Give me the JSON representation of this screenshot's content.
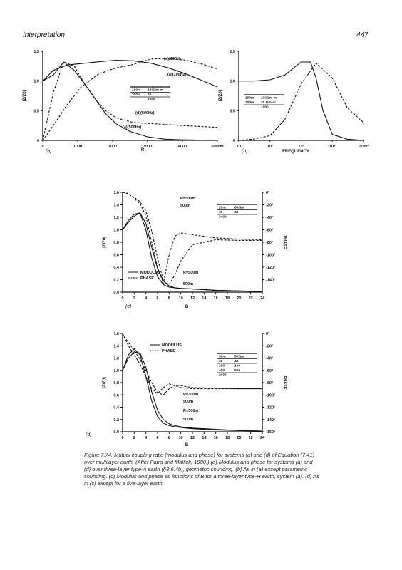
{
  "header": {
    "left": "Interpretation",
    "right": "447"
  },
  "figure_caption": "Figure 7.74. Mutual coupling ratio (modulus and phase) for systems (a) and (d) of Equation (7.41) over multilayer earth. (After Patra and Mallick, 1980.) (a) Modulus and phase for systems (a) and (d) over three-layer type-A earth (§8.6.4b), geometric sounding. (b) As in (a) except parametric sounding. (c) Modulus and phase as functions of B for a three-layer type-H earth, system (a). (d) As in (c) except for a five-layer earth.",
  "chart_data": [
    {
      "id": "a",
      "panel_label": "(a)",
      "type": "line",
      "xlabel": "R",
      "ylabel": "|Z/Z0|",
      "xlim": [
        0,
        5000
      ],
      "ylim": [
        0,
        1.5
      ],
      "x_ticks": [
        "0",
        "1000",
        "2000",
        "3000",
        "4000",
        "5000m"
      ],
      "y_ticks": [
        "0",
        "0.5",
        "1.0",
        "1.5"
      ],
      "series": [
        {
          "name": "(a)(100Hz)",
          "style": "solid",
          "x": [
            0,
            300,
            700,
            1200,
            1700,
            2100,
            2600,
            3100,
            3600,
            4100,
            4600,
            5000
          ],
          "y": [
            1.0,
            1.18,
            1.27,
            1.3,
            1.33,
            1.35,
            1.34,
            1.3,
            1.22,
            1.12,
            1.0,
            0.9
          ]
        },
        {
          "name": "(d)(100Hz)",
          "style": "dashed",
          "x": [
            0,
            300,
            700,
            1100,
            1600,
            2100,
            2600,
            3100,
            3600,
            4100,
            4600,
            5000
          ],
          "y": [
            0.0,
            0.25,
            0.6,
            0.9,
            1.12,
            1.22,
            1.28,
            1.37,
            1.38,
            1.35,
            1.28,
            1.2
          ]
        },
        {
          "name": "(a)(500Hz)",
          "style": "solid",
          "x": [
            0,
            300,
            600,
            900,
            1200,
            1500,
            1800,
            2100,
            2500,
            3000,
            3500,
            4000,
            5000
          ],
          "y": [
            1.0,
            1.1,
            1.32,
            1.18,
            0.95,
            0.7,
            0.45,
            0.28,
            0.15,
            0.06,
            0.02,
            0.01,
            0.0
          ]
        },
        {
          "name": "(d)(500Hz)",
          "style": "dashed",
          "x": [
            0,
            300,
            600,
            900,
            1200,
            1500,
            1800,
            2100,
            2600,
            3200,
            4000,
            5000
          ],
          "y": [
            0.0,
            0.8,
            1.32,
            1.25,
            0.95,
            0.7,
            0.5,
            0.38,
            0.3,
            0.28,
            0.25,
            0.22
          ]
        }
      ],
      "labels": [
        "(d)(100Hz)",
        "(a)(100Hz)",
        "(d)(500Hz)",
        "(a)(500Hz)"
      ],
      "legend_table": [
        [
          "100m",
          "100Ωm-m"
        ],
        [
          "200m",
          "20"
        ],
        [
          "",
          "1000"
        ]
      ]
    },
    {
      "id": "b",
      "panel_label": "(b)",
      "type": "line",
      "xlabel": "FREQUENCY",
      "ylabel": "|Z/Z0|",
      "xscale": "log",
      "xlim": [
        10,
        100000
      ],
      "ylim": [
        0,
        1.5
      ],
      "x_ticks": [
        "10",
        "10²",
        "10³",
        "10⁴",
        "10⁵Hz"
      ],
      "y_ticks": [
        "0",
        "0.5",
        "1.0",
        "1.5"
      ],
      "series": [
        {
          "name": "(a)",
          "style": "solid",
          "x": [
            10,
            30,
            100,
            300,
            1000,
            2000,
            3000,
            5000,
            10000,
            30000,
            100000
          ],
          "y": [
            1.0,
            1.0,
            1.02,
            1.1,
            1.32,
            1.32,
            1.05,
            0.5,
            0.1,
            0.02,
            0.0
          ]
        },
        {
          "name": "(d)",
          "style": "dashed",
          "x": [
            10,
            30,
            100,
            300,
            1000,
            3000,
            10000,
            30000,
            100000
          ],
          "y": [
            0.0,
            0.02,
            0.08,
            0.35,
            0.95,
            1.3,
            1.05,
            0.55,
            0.3
          ]
        }
      ],
      "legend_table": [
        [
          "100m",
          "100Ωm-m"
        ],
        [
          "200m",
          "20 Ωm-m"
        ],
        [
          "",
          "1000"
        ]
      ]
    },
    {
      "id": "c",
      "panel_label": "(c)",
      "type": "line",
      "xlabel": "B",
      "ylabel": "|Z/Z0|",
      "ylabel_right": "PHASE",
      "xlim": [
        0,
        24
      ],
      "ylim": [
        0,
        1.6
      ],
      "ylim_right": [
        -160,
        0
      ],
      "x_ticks": [
        "0",
        "2",
        "4",
        "6",
        "8",
        "10",
        "12",
        "14",
        "16",
        "18",
        "20",
        "22",
        "24"
      ],
      "y_ticks": [
        "0.0",
        "0.2",
        "0.4",
        "0.6",
        "0.8",
        "1.0",
        "1.2",
        "1.4",
        "1.6"
      ],
      "y_ticks_right": [
        "0°",
        "-20°",
        "-40°",
        "-60°",
        "-80°",
        "-100°",
        "-120°",
        "-140°"
      ],
      "series": [
        {
          "name": "MODULUS R=500m",
          "style": "solid",
          "x": [
            0,
            1,
            2,
            3,
            4,
            5,
            6,
            7,
            8,
            9,
            10,
            12,
            16,
            20,
            24
          ],
          "y": [
            1.0,
            1.15,
            1.25,
            1.27,
            1.0,
            0.55,
            0.25,
            0.12,
            0.08,
            0.07,
            0.06,
            0.05,
            0.03,
            0.02,
            0.01
          ]
        },
        {
          "name": "MODULUS 500m",
          "style": "solid",
          "x": [
            0,
            1,
            2,
            3,
            4,
            5,
            6,
            7,
            8,
            9,
            10,
            12,
            16,
            20,
            24
          ],
          "y": [
            1.0,
            1.12,
            1.22,
            1.27,
            1.1,
            0.72,
            0.38,
            0.18,
            0.1,
            0.07,
            0.06,
            0.05,
            0.03,
            0.02,
            0.01
          ]
        },
        {
          "name": "PHASE R=500m",
          "style": "dashed",
          "x": [
            0,
            1,
            2,
            3,
            4,
            5,
            6,
            7,
            8,
            9,
            10,
            12,
            16,
            20,
            24
          ],
          "y": [
            0,
            -2,
            -10,
            -18,
            -38,
            -80,
            -120,
            -146,
            -100,
            -70,
            -65,
            -68,
            -73,
            -75,
            -76
          ]
        },
        {
          "name": "PHASE 500m",
          "style": "dashed",
          "x": [
            0,
            1,
            2,
            3,
            4,
            5,
            6,
            7,
            8,
            9,
            10,
            12,
            16,
            20,
            24
          ],
          "y": [
            0,
            -2,
            -8,
            -15,
            -30,
            -62,
            -105,
            -142,
            -148,
            -132,
            -110,
            -84,
            -76,
            -77,
            -77
          ]
        }
      ],
      "legend": [
        "MODULUS",
        "PHASE"
      ],
      "labels": [
        "R=500m",
        "500m",
        "R=500m",
        "500m"
      ],
      "legend_table": [
        [
          "20m",
          "80Ωm"
        ],
        [
          "30",
          "40"
        ],
        [
          "2400",
          ""
        ]
      ]
    },
    {
      "id": "d",
      "panel_label": "(d)",
      "type": "line",
      "xlabel": "B",
      "ylabel": "|Z/Z0|",
      "ylabel_right": "PHASE",
      "xlim": [
        0,
        24
      ],
      "ylim": [
        0,
        1.6
      ],
      "ylim_right": [
        -160,
        0
      ],
      "x_ticks": [
        "0",
        "2",
        "4",
        "6",
        "8",
        "10",
        "12",
        "14",
        "16",
        "18",
        "20",
        "22",
        "24"
      ],
      "y_ticks": [
        "0.0",
        "0.2",
        "0.4",
        "0.6",
        "0.8",
        "1.0",
        "1.2",
        "1.4",
        "1.6"
      ],
      "y_ticks_right": [
        "0°",
        "-20°",
        "-40°",
        "-60°",
        "-80°",
        "-100°",
        "-120°",
        "-140°",
        "-160°"
      ],
      "series": [
        {
          "name": "MODULUS R=300m",
          "style": "solid",
          "x": [
            0,
            1,
            2,
            3,
            4,
            5,
            6,
            7,
            8,
            9,
            10,
            12,
            16,
            20,
            24
          ],
          "y": [
            1.0,
            1.25,
            1.35,
            1.25,
            0.9,
            0.5,
            0.25,
            0.14,
            0.1,
            0.08,
            0.07,
            0.05,
            0.03,
            0.02,
            0.01
          ]
        },
        {
          "name": "MODULUS 500m",
          "style": "solid",
          "x": [
            0,
            1,
            2,
            3,
            4,
            5,
            6,
            7,
            8,
            9,
            10,
            12,
            16,
            20,
            24
          ],
          "y": [
            1.0,
            1.2,
            1.3,
            1.28,
            1.05,
            0.65,
            0.35,
            0.2,
            0.13,
            0.1,
            0.08,
            0.06,
            0.04,
            0.02,
            0.01
          ]
        },
        {
          "name": "PHASE R=300m",
          "style": "dashed",
          "x": [
            0,
            1,
            2,
            3,
            4,
            5,
            6,
            7,
            8,
            9,
            10,
            12,
            16,
            20,
            24
          ],
          "y": [
            0,
            -20,
            -35,
            -50,
            -70,
            -90,
            -98,
            -88,
            -82,
            -85,
            -88,
            -90,
            -90,
            -90,
            -90
          ]
        },
        {
          "name": "PHASE 500m",
          "style": "dashed",
          "x": [
            0,
            1,
            2,
            3,
            4,
            5,
            6,
            7,
            8,
            9,
            10,
            12,
            16,
            20,
            24
          ],
          "y": [
            0,
            -15,
            -28,
            -42,
            -60,
            -80,
            -96,
            -100,
            -90,
            -84,
            -85,
            -88,
            -89,
            -90,
            -90
          ]
        }
      ],
      "legend": [
        "MODULUS",
        "PHASE"
      ],
      "labels": [
        "R=300m",
        "500m",
        "R=300m",
        "500m"
      ],
      "legend_table": [
        [
          "30m",
          "50Ωm"
        ],
        [
          "30",
          "40"
        ],
        [
          "100",
          "100"
        ],
        [
          "400",
          "500"
        ],
        [
          "2000",
          ""
        ]
      ]
    }
  ]
}
